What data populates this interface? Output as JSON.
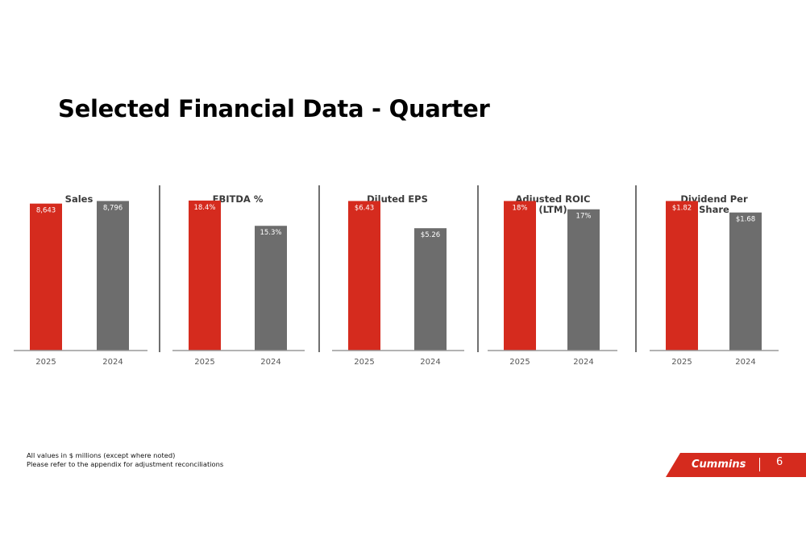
{
  "title": "Selected Financial Data - Quarter",
  "footnotes": [
    "All values in $ millions (except where noted)",
    "Please refer to the appendix for adjustment reconciliations"
  ],
  "brand": {
    "logo_text": "Cummins",
    "page_number": "6"
  },
  "colors": {
    "current": "#d52b1e",
    "prior": "#6d6d6d",
    "brand": "#d52b1e"
  },
  "chart_data": [
    {
      "type": "bar",
      "title": [
        "Sales"
      ],
      "categories": [
        "2025",
        "2024"
      ],
      "values": [
        8643,
        8796
      ],
      "labels": [
        "8,643",
        "8,796"
      ]
    },
    {
      "type": "bar",
      "title": [
        "EBITDA %"
      ],
      "categories": [
        "2025",
        "2024"
      ],
      "values": [
        18.4,
        15.3
      ],
      "labels": [
        "18.4%",
        "15.3%"
      ]
    },
    {
      "type": "bar",
      "title": [
        "Diluted EPS"
      ],
      "categories": [
        "2025",
        "2024"
      ],
      "values": [
        6.43,
        5.26
      ],
      "labels": [
        "$6.43",
        "$5.26"
      ]
    },
    {
      "type": "bar",
      "title": [
        "Adjusted ROIC",
        "(LTM)"
      ],
      "categories": [
        "2025",
        "2024"
      ],
      "values": [
        18,
        17
      ],
      "labels": [
        "18%",
        "17%"
      ]
    },
    {
      "type": "bar",
      "title": [
        "Dividend Per",
        "Share"
      ],
      "categories": [
        "2025",
        "2024"
      ],
      "values": [
        1.82,
        1.68
      ],
      "labels": [
        "$1.82",
        "$1.68"
      ]
    }
  ]
}
